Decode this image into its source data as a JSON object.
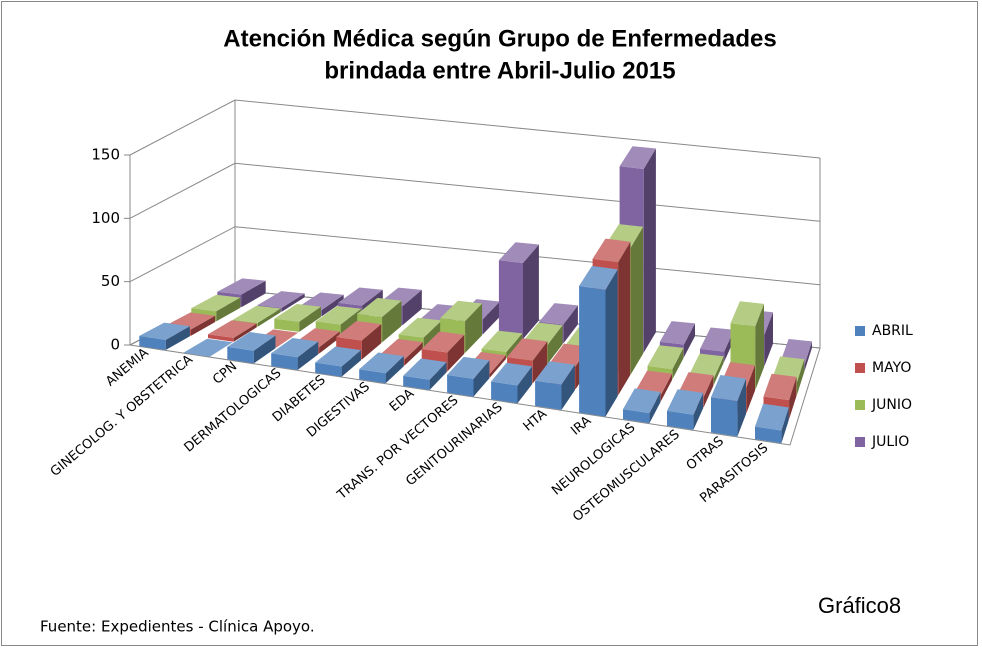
{
  "chart_data": {
    "type": "bar3d",
    "title": [
      "Atención Médica según Grupo de Enfermedades",
      "brindada entre Abril-Julio 2015"
    ],
    "categories": [
      "ANEMIA",
      "GINECOLOG. Y OBSTETRICA",
      "CPN",
      "DERMATOLOGICAS",
      "DIABETES",
      "DIGESTIVAS",
      "EDA",
      "TRANS. POR VECTORES",
      "GENITOURINARIAS",
      "HTA",
      "IRA",
      "NEUROLOGICAS",
      "OSTEOMUSCULARES",
      "OTRAS",
      "PARASITOSIS"
    ],
    "series": [
      {
        "name": "ABRIL",
        "color": "#4f81bd",
        "values": [
          8,
          0,
          10,
          10,
          8,
          8,
          8,
          14,
          14,
          20,
          100,
          8,
          12,
          28,
          10
        ]
      },
      {
        "name": "MAYO",
        "color": "#c0504d",
        "values": [
          5,
          3,
          0,
          5,
          15,
          5,
          15,
          3,
          18,
          18,
          105,
          5,
          8,
          20,
          15
        ]
      },
      {
        "name": "JUNIO",
        "color": "#9bbb59",
        "values": [
          8,
          3,
          8,
          10,
          20,
          8,
          25,
          5,
          15,
          15,
          100,
          8,
          5,
          50,
          10
        ]
      },
      {
        "name": "JULIO",
        "color": "#8064a2",
        "values": [
          10,
          3,
          5,
          12,
          15,
          5,
          12,
          60,
          15,
          15,
          145,
          10,
          8,
          25,
          5
        ]
      }
    ],
    "ylim": [
      0,
      150
    ],
    "yticks": [
      0,
      50,
      100,
      150
    ],
    "grid": true,
    "legend": "right",
    "source": "Fuente: Expedientes - Clínica Apoyo.",
    "label": "Gráfico8"
  }
}
